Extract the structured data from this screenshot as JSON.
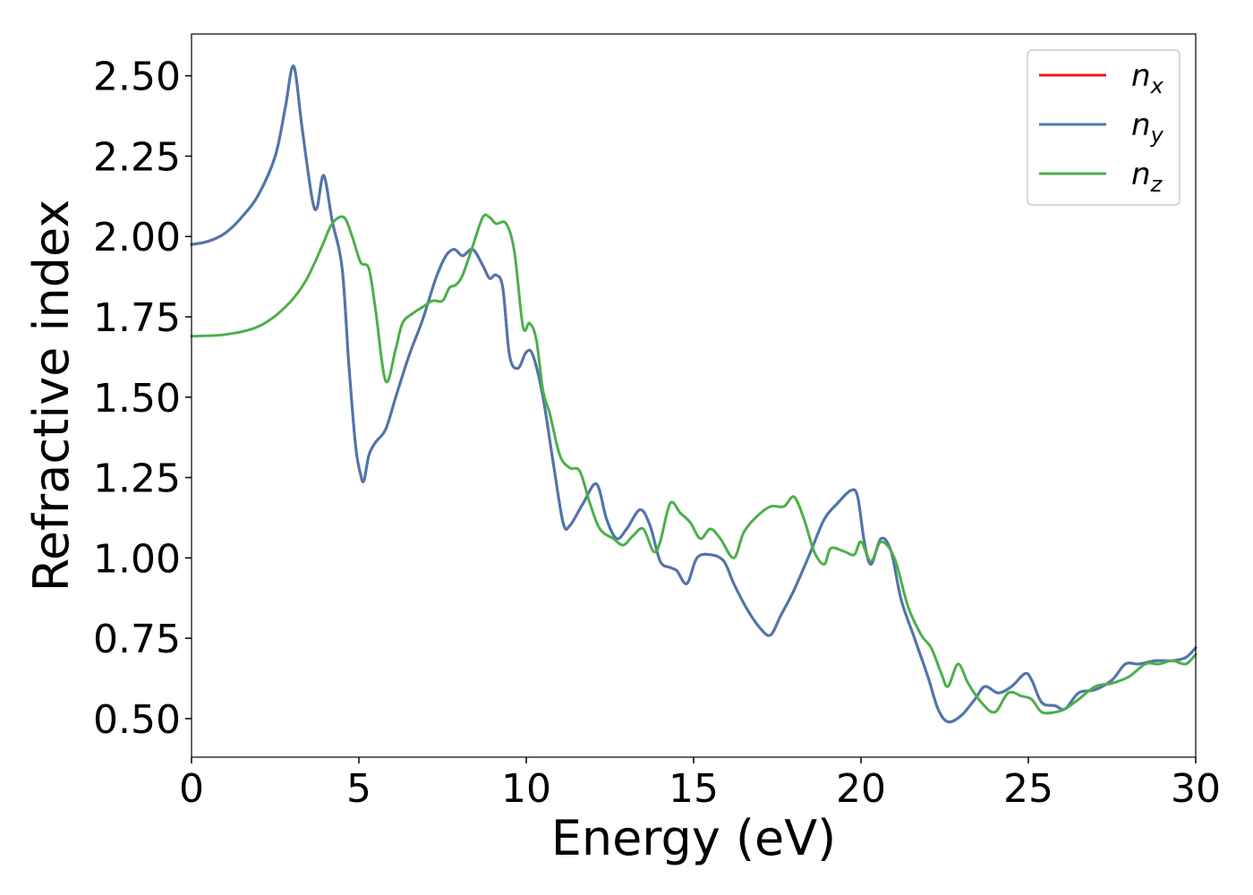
{
  "chart_data": {
    "type": "line",
    "xlabel": "Energy (eV)",
    "ylabel": "Refractive index",
    "xlim": [
      0,
      30
    ],
    "ylim": [
      0.38,
      2.63
    ],
    "xticks": [
      0,
      5,
      10,
      15,
      20,
      25,
      30
    ],
    "xtick_labels": [
      "0",
      "5",
      "10",
      "15",
      "20",
      "25",
      "30"
    ],
    "yticks": [
      0.5,
      0.75,
      1.0,
      1.25,
      1.5,
      1.75,
      2.0,
      2.25,
      2.5
    ],
    "ytick_labels": [
      "0.50",
      "0.75",
      "1.00",
      "1.25",
      "1.50",
      "1.75",
      "2.00",
      "2.25",
      "2.50"
    ],
    "grid": false,
    "legend_position": "top-right",
    "series": [
      {
        "name": "n",
        "subscript": "x",
        "color": "#e41a1c",
        "x": [
          0,
          0.5,
          1,
          1.5,
          2,
          2.5,
          2.8,
          3.05,
          3.3,
          3.6,
          3.75,
          3.95,
          4.2,
          4.5,
          4.7,
          4.9,
          5.05,
          5.15,
          5.3,
          5.5,
          5.8,
          6.1,
          6.5,
          6.9,
          7.3,
          7.6,
          7.85,
          8.1,
          8.4,
          8.7,
          8.9,
          9.1,
          9.3,
          9.5,
          9.75,
          10.0,
          10.2,
          10.5,
          10.8,
          11.1,
          11.3,
          11.7,
          12.1,
          12.4,
          12.7,
          13.0,
          13.4,
          13.7,
          14.0,
          14.3,
          14.5,
          14.8,
          15.1,
          15.5,
          15.9,
          16.2,
          16.6,
          17.0,
          17.3,
          17.6,
          18.0,
          18.5,
          18.9,
          19.3,
          19.7,
          19.9,
          20.1,
          20.3,
          20.6,
          20.9,
          21.2,
          21.6,
          22.0,
          22.3,
          22.6,
          23.0,
          23.4,
          23.7,
          24.1,
          24.5,
          24.9,
          25.1,
          25.4,
          25.8,
          26.1,
          26.5,
          27.0,
          27.5,
          27.9,
          28.3,
          28.8,
          29.3,
          29.7,
          30.0
        ],
        "y": [
          1.975,
          1.985,
          2.01,
          2.06,
          2.13,
          2.25,
          2.4,
          2.53,
          2.34,
          2.12,
          2.09,
          2.19,
          2.05,
          1.9,
          1.6,
          1.35,
          1.26,
          1.24,
          1.32,
          1.36,
          1.4,
          1.5,
          1.63,
          1.74,
          1.87,
          1.94,
          1.96,
          1.94,
          1.96,
          1.91,
          1.87,
          1.88,
          1.84,
          1.63,
          1.59,
          1.64,
          1.63,
          1.5,
          1.3,
          1.11,
          1.1,
          1.17,
          1.23,
          1.12,
          1.06,
          1.09,
          1.15,
          1.1,
          0.99,
          0.97,
          0.96,
          0.92,
          1.0,
          1.01,
          0.99,
          0.92,
          0.84,
          0.78,
          0.76,
          0.82,
          0.9,
          1.02,
          1.12,
          1.17,
          1.21,
          1.19,
          1.05,
          0.98,
          1.06,
          1.02,
          0.87,
          0.75,
          0.63,
          0.53,
          0.49,
          0.51,
          0.56,
          0.6,
          0.58,
          0.6,
          0.64,
          0.62,
          0.55,
          0.54,
          0.53,
          0.58,
          0.59,
          0.62,
          0.67,
          0.67,
          0.68,
          0.68,
          0.69,
          0.72
        ]
      },
      {
        "name": "n",
        "subscript": "y",
        "color": "#4a78b0",
        "x": [
          0,
          0.5,
          1,
          1.5,
          2,
          2.5,
          2.8,
          3.05,
          3.3,
          3.6,
          3.75,
          3.95,
          4.2,
          4.5,
          4.7,
          4.9,
          5.05,
          5.15,
          5.3,
          5.5,
          5.8,
          6.1,
          6.5,
          6.9,
          7.3,
          7.6,
          7.85,
          8.1,
          8.4,
          8.7,
          8.9,
          9.1,
          9.3,
          9.5,
          9.75,
          10.0,
          10.2,
          10.5,
          10.8,
          11.1,
          11.3,
          11.7,
          12.1,
          12.4,
          12.7,
          13.0,
          13.4,
          13.7,
          14.0,
          14.3,
          14.5,
          14.8,
          15.1,
          15.5,
          15.9,
          16.2,
          16.6,
          17.0,
          17.3,
          17.6,
          18.0,
          18.5,
          18.9,
          19.3,
          19.7,
          19.9,
          20.1,
          20.3,
          20.6,
          20.9,
          21.2,
          21.6,
          22.0,
          22.3,
          22.6,
          23.0,
          23.4,
          23.7,
          24.1,
          24.5,
          24.9,
          25.1,
          25.4,
          25.8,
          26.1,
          26.5,
          27.0,
          27.5,
          27.9,
          28.3,
          28.8,
          29.3,
          29.7,
          30.0
        ],
        "y": [
          1.975,
          1.985,
          2.01,
          2.06,
          2.13,
          2.25,
          2.4,
          2.53,
          2.34,
          2.12,
          2.09,
          2.19,
          2.05,
          1.9,
          1.6,
          1.35,
          1.26,
          1.24,
          1.32,
          1.36,
          1.4,
          1.5,
          1.63,
          1.74,
          1.87,
          1.94,
          1.96,
          1.94,
          1.96,
          1.91,
          1.87,
          1.88,
          1.84,
          1.63,
          1.59,
          1.64,
          1.63,
          1.5,
          1.3,
          1.11,
          1.1,
          1.17,
          1.23,
          1.12,
          1.06,
          1.09,
          1.15,
          1.1,
          0.99,
          0.97,
          0.96,
          0.92,
          1.0,
          1.01,
          0.99,
          0.92,
          0.84,
          0.78,
          0.76,
          0.82,
          0.9,
          1.02,
          1.12,
          1.17,
          1.21,
          1.19,
          1.05,
          0.98,
          1.06,
          1.02,
          0.87,
          0.75,
          0.63,
          0.53,
          0.49,
          0.51,
          0.56,
          0.6,
          0.58,
          0.6,
          0.64,
          0.62,
          0.55,
          0.54,
          0.53,
          0.58,
          0.59,
          0.62,
          0.67,
          0.67,
          0.68,
          0.68,
          0.69,
          0.72
        ]
      },
      {
        "name": "n",
        "subscript": "z",
        "color": "#4daf4a",
        "x": [
          0,
          1,
          2,
          2.8,
          3.4,
          3.9,
          4.2,
          4.55,
          4.8,
          5.05,
          5.3,
          5.5,
          5.8,
          6.1,
          6.3,
          6.6,
          6.9,
          7.2,
          7.5,
          7.7,
          7.9,
          8.1,
          8.4,
          8.7,
          8.9,
          9.1,
          9.4,
          9.65,
          9.9,
          10.1,
          10.3,
          10.5,
          10.7,
          11.0,
          11.3,
          11.6,
          11.9,
          12.2,
          12.6,
          12.9,
          13.2,
          13.5,
          13.8,
          14.0,
          14.3,
          14.6,
          14.9,
          15.2,
          15.5,
          15.8,
          16.2,
          16.5,
          16.9,
          17.3,
          17.7,
          18.0,
          18.3,
          18.6,
          18.9,
          19.1,
          19.5,
          19.8,
          20.0,
          20.3,
          20.6,
          21.0,
          21.4,
          21.8,
          22.1,
          22.4,
          22.6,
          22.9,
          23.2,
          23.6,
          24.0,
          24.4,
          24.8,
          25.1,
          25.4,
          25.8,
          26.1,
          26.5,
          27.0,
          27.5,
          28.0,
          28.5,
          28.9,
          29.3,
          29.7,
          30.0
        ],
        "y": [
          1.69,
          1.695,
          1.72,
          1.78,
          1.86,
          1.97,
          2.04,
          2.06,
          2.0,
          1.92,
          1.9,
          1.77,
          1.55,
          1.65,
          1.73,
          1.76,
          1.78,
          1.8,
          1.8,
          1.84,
          1.85,
          1.88,
          1.97,
          2.06,
          2.06,
          2.04,
          2.04,
          1.95,
          1.72,
          1.73,
          1.68,
          1.52,
          1.45,
          1.32,
          1.28,
          1.27,
          1.17,
          1.09,
          1.06,
          1.04,
          1.07,
          1.09,
          1.02,
          1.05,
          1.17,
          1.14,
          1.11,
          1.06,
          1.09,
          1.06,
          1.0,
          1.08,
          1.13,
          1.16,
          1.16,
          1.19,
          1.12,
          1.02,
          0.98,
          1.03,
          1.02,
          1.01,
          1.05,
          0.99,
          1.05,
          1.0,
          0.85,
          0.76,
          0.72,
          0.64,
          0.6,
          0.67,
          0.61,
          0.55,
          0.52,
          0.58,
          0.57,
          0.56,
          0.52,
          0.52,
          0.53,
          0.56,
          0.6,
          0.61,
          0.63,
          0.67,
          0.67,
          0.68,
          0.67,
          0.7
        ]
      }
    ]
  }
}
